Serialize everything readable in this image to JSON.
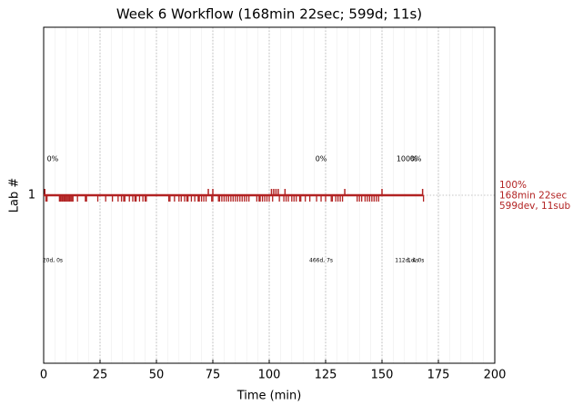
{
  "chart_data": {
    "type": "timeline",
    "title": "Week 6 Workflow (168min 22sec; 599d; 11s)",
    "x_label": "Time (min)",
    "y_label": "Lab #",
    "xlim": [
      0,
      200
    ],
    "xticks": [
      0,
      25,
      50,
      75,
      100,
      125,
      150,
      175,
      200
    ],
    "ylim": [
      0,
      2
    ],
    "yticks": [
      1
    ],
    "grid": true,
    "minor_grid_step": 5,
    "color": "#b22222",
    "span": [
      0,
      168.37
    ],
    "developments": [
      1,
      1.5,
      7,
      7.5,
      8,
      8.5,
      9,
      9.5,
      10,
      10.5,
      11,
      11.5,
      12,
      12.5,
      13,
      15,
      18.5,
      19,
      24,
      27.5,
      30.5,
      33,
      34.5,
      35.5,
      36,
      38,
      39.5,
      40.5,
      41,
      42.5,
      44,
      45,
      45.5,
      55.5,
      56,
      58,
      60,
      61,
      62.5,
      63.5,
      64,
      65.5,
      67,
      68.5,
      69,
      70,
      71,
      72,
      74.5,
      75,
      77.5,
      78,
      79,
      80,
      81,
      82,
      83,
      84,
      85,
      86,
      87,
      88,
      89,
      90,
      91,
      94.5,
      95.5,
      96,
      97,
      98,
      99,
      100,
      101.5,
      104.5,
      106.5,
      107.5,
      108.5,
      110,
      111,
      112,
      113.5,
      114,
      116,
      118,
      121,
      123,
      125,
      127.5,
      128,
      129.5,
      130.5,
      131.5,
      132.5,
      139,
      140,
      141,
      142.5,
      143.5,
      144.5,
      145.5,
      146.5,
      147.5,
      148.5,
      168.4
    ],
    "submissions": [
      0.5,
      73,
      75,
      101,
      102,
      103,
      104,
      107,
      133.5,
      150,
      168
    ],
    "segments": [
      {
        "x": 4,
        "top": "0%",
        "bottom": "20d, 0s"
      },
      {
        "x": 123,
        "top": "0%",
        "bottom": "466d, 7s"
      },
      {
        "x": 161,
        "top": "100%",
        "bottom": "112d, 4s"
      },
      {
        "x": 165,
        "top": "0%",
        "bottom": "1d, 0s"
      }
    ],
    "summary": [
      "100%",
      "168min 22sec",
      "599dev, 11sub"
    ]
  }
}
